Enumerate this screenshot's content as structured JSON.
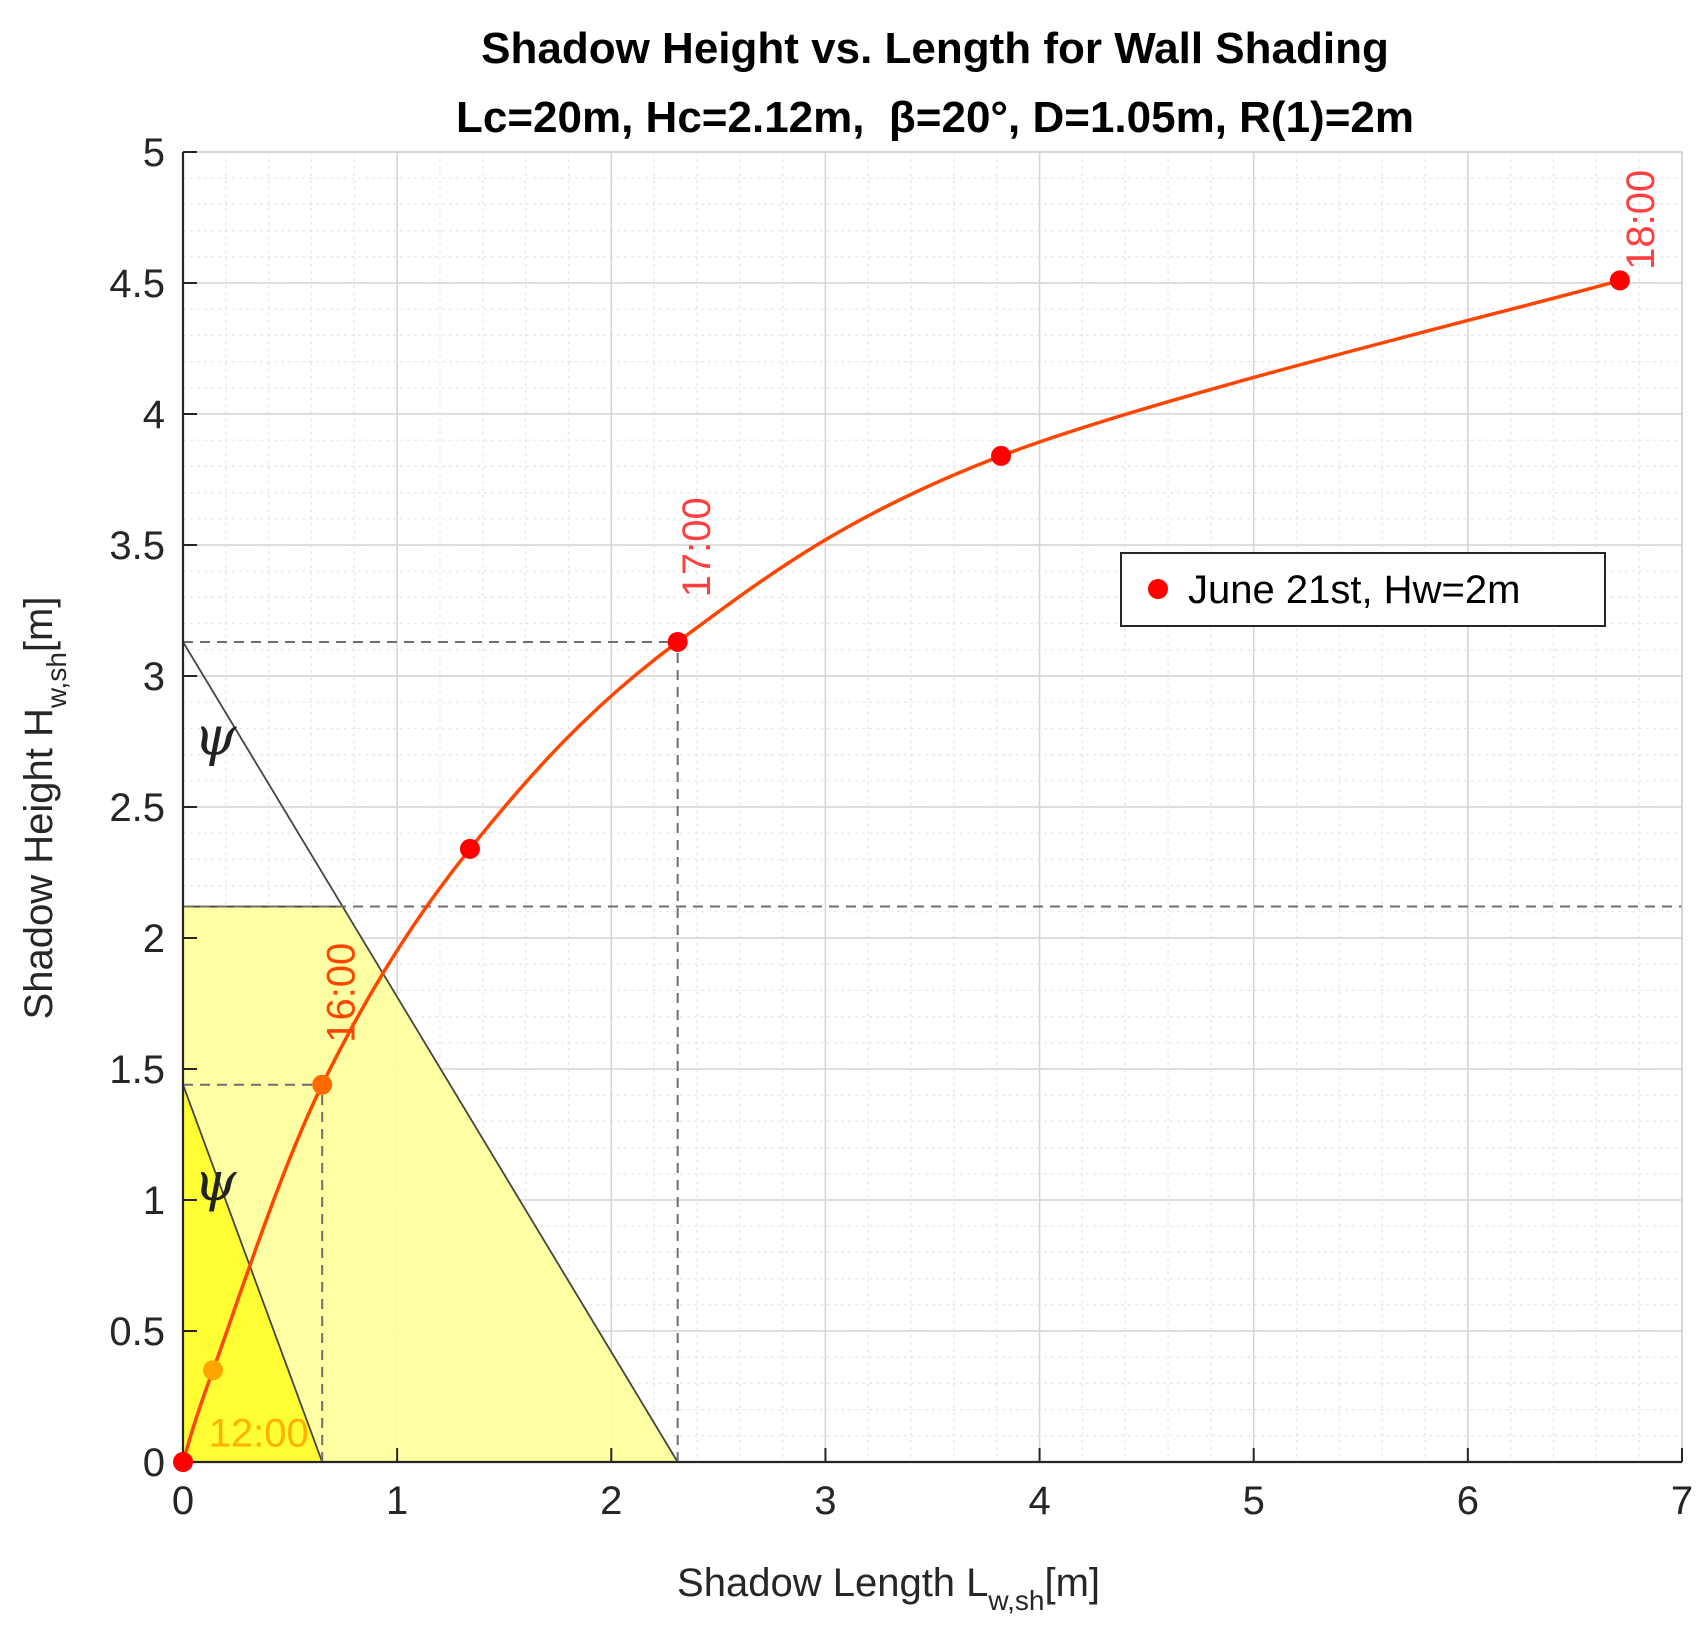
{
  "chart_data": {
    "type": "line",
    "title": "Shadow Height vs. Length for Wall Shading",
    "subtitle": "Lc=20m, Hc=2.12m,  β=20°, D=1.05m, R(1)=2m",
    "xlabel": {
      "main": "Shadow Length L",
      "sub": "w,sh",
      "unit": "[m]"
    },
    "ylabel": {
      "main": "Shadow Height H",
      "sub": "w,sh",
      "unit": "[m]"
    },
    "xlim": [
      0,
      7
    ],
    "ylim": [
      0,
      5
    ],
    "xticks": [
      0,
      1,
      2,
      3,
      4,
      5,
      6,
      7
    ],
    "xtick_labels": [
      "0",
      "1",
      "2",
      "3",
      "4",
      "5",
      "6",
      "7"
    ],
    "yticks": [
      0,
      0.5,
      1,
      1.5,
      2,
      2.5,
      3,
      3.5,
      4,
      4.5,
      5
    ],
    "ytick_labels": [
      "0",
      "0.5",
      "1",
      "1.5",
      "2",
      "2.5",
      "3",
      "3.5",
      "4",
      "4.5",
      "5"
    ],
    "grid": true,
    "minor_grid": true,
    "legend": {
      "position": "right",
      "entries": [
        "June 21st, Hw=2m"
      ]
    },
    "series": [
      {
        "name": "June 21st, Hw=2m",
        "color": "#ff0000",
        "line_color": "#ff4500",
        "points": [
          {
            "x": 0,
            "y": 0
          },
          {
            "x": 0.14,
            "y": 0.35
          },
          {
            "x": 0.65,
            "y": 1.44
          },
          {
            "x": 1.34,
            "y": 2.34
          },
          {
            "x": 2.31,
            "y": 3.13
          },
          {
            "x": 3.82,
            "y": 3.84
          },
          {
            "x": 6.71,
            "y": 4.51
          }
        ]
      }
    ],
    "annotations": [
      {
        "text": "12:00",
        "x": 0.12,
        "y": 0.06,
        "rotation": 0,
        "color": "#ffb000"
      },
      {
        "text": "16:00",
        "x": 0.8,
        "y": 1.6,
        "rotation": -90,
        "color": "#ff4500"
      },
      {
        "text": "17:00",
        "x": 2.46,
        "y": 3.3,
        "rotation": -90,
        "color": "#ff4040"
      },
      {
        "text": "18:00",
        "x": 6.87,
        "y": 4.55,
        "rotation": -90,
        "color": "#ff4040"
      }
    ],
    "shading": {
      "hc_line_y": 2.12,
      "large_polygon": [
        [
          0,
          0
        ],
        [
          2.31,
          0
        ],
        [
          0.74,
          2.12
        ],
        [
          0,
          2.12
        ]
      ],
      "large_polygon_color": "#ffff99",
      "small_triangle": [
        [
          0,
          0
        ],
        [
          0.65,
          0
        ],
        [
          0,
          1.44
        ]
      ],
      "small_triangle_color": "#ffff33",
      "large_diag": [
        [
          0,
          3.13
        ],
        [
          2.31,
          0
        ]
      ],
      "small_diag": [
        [
          0,
          1.44
        ],
        [
          0.65,
          0
        ]
      ],
      "h_dashed": [
        {
          "y": 3.13,
          "x0": 0,
          "x1": 2.31
        },
        {
          "y": 1.44,
          "x0": 0,
          "x1": 0.65
        },
        {
          "y": 2.12,
          "x0": 0,
          "x1": 7
        }
      ],
      "v_dashed": [
        {
          "x": 2.31,
          "y0": 0,
          "y1": 3.13
        },
        {
          "x": 0.65,
          "y0": 0,
          "y1": 1.44
        }
      ]
    },
    "psi_labels": [
      {
        "text": "ψ",
        "x": 0.15,
        "y": 2.7
      },
      {
        "text": "ψ",
        "x": 0.15,
        "y": 1.0
      }
    ]
  }
}
